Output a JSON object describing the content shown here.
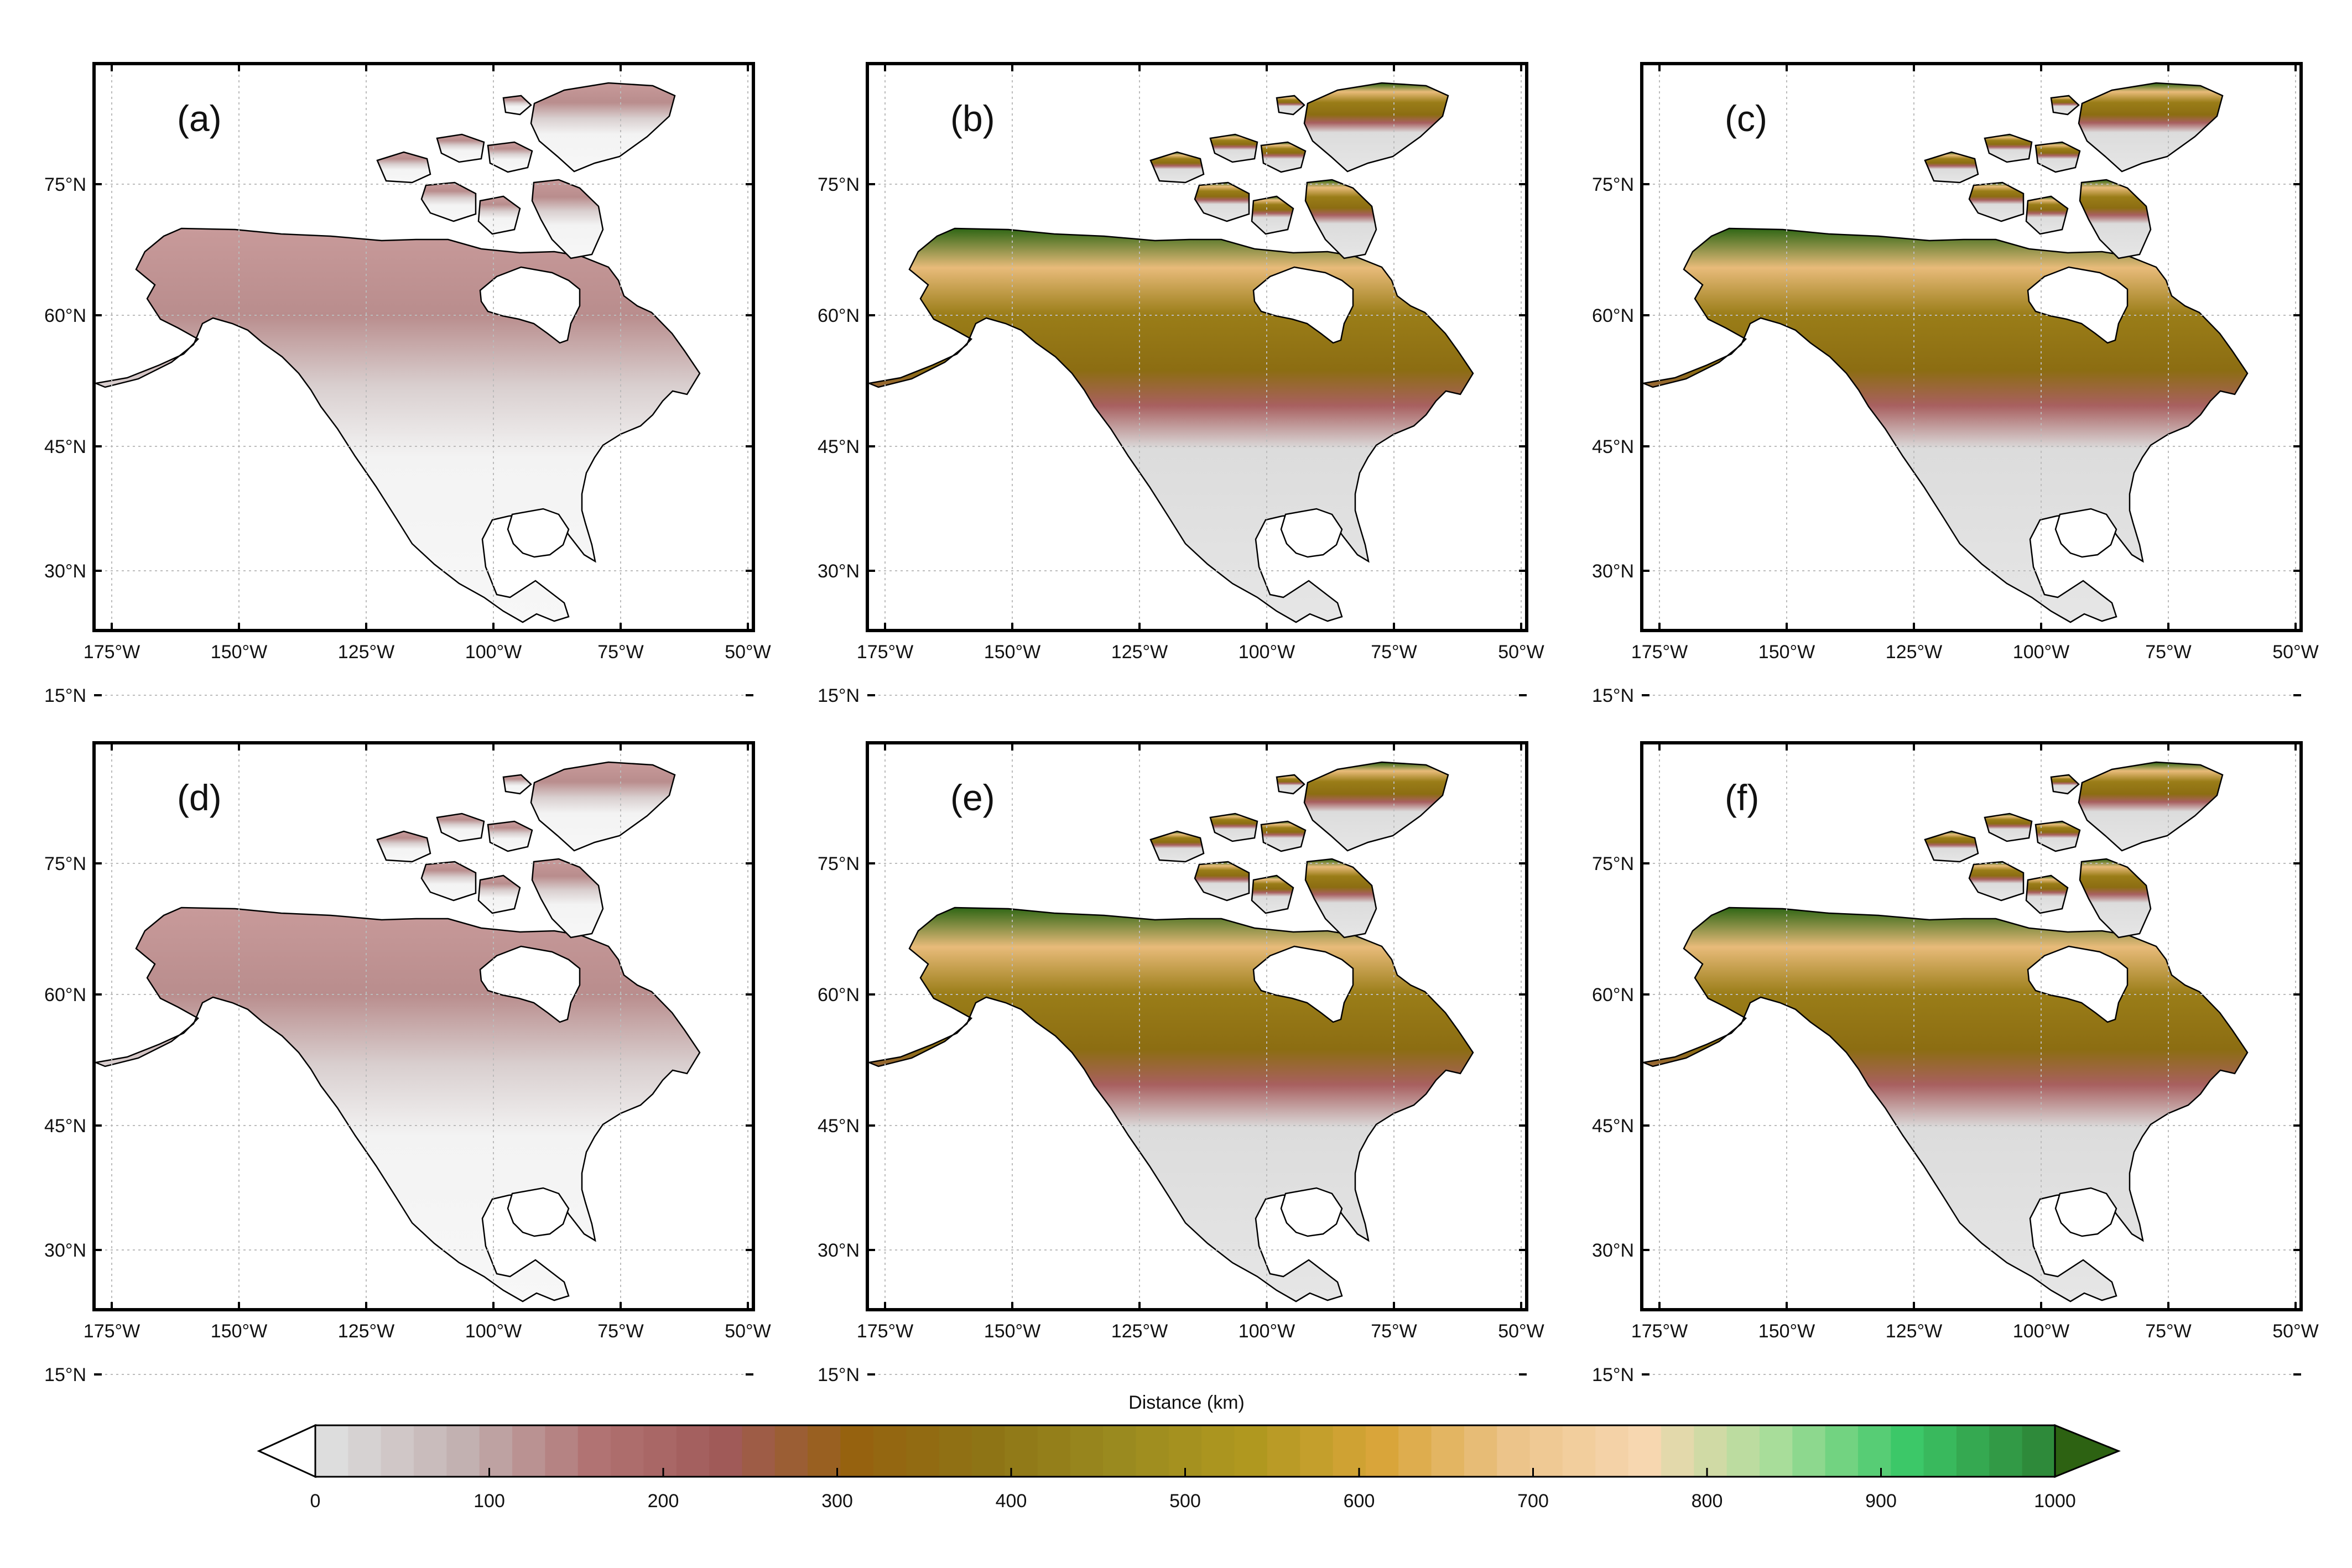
{
  "figure": {
    "lat_ticks": [
      "75°N",
      "60°N",
      "45°N",
      "30°N",
      "15°N"
    ],
    "lon_ticks": [
      "175°W",
      "150°W",
      "125°W",
      "100°W",
      "75°W",
      "50°W"
    ],
    "panels": [
      {
        "label": "(a)",
        "scheme": "low"
      },
      {
        "label": "(b)",
        "scheme": "high"
      },
      {
        "label": "(c)",
        "scheme": "high"
      },
      {
        "label": "(d)",
        "scheme": "low"
      },
      {
        "label": "(e)",
        "scheme": "high"
      },
      {
        "label": "(f)",
        "scheme": "high"
      }
    ]
  },
  "colorbar": {
    "title": "Distance (km)",
    "ticks": [
      "0",
      "100",
      "200",
      "300",
      "400",
      "500",
      "600",
      "700",
      "800",
      "900",
      "1000"
    ],
    "min": 0,
    "max": 1000,
    "extend": "both",
    "colors": [
      "#ffffff",
      "#dddddd",
      "#c2b1b1",
      "#b17373",
      "#a05a58",
      "#96620f",
      "#8e7415",
      "#9a8a1f",
      "#b0981f",
      "#d9a53a",
      "#ecc48a",
      "#f7d7b0",
      "#a8dd9a",
      "#3cc868",
      "#2e8a3a",
      "#2d6212"
    ]
  },
  "colors": {
    "coast": "#000000",
    "grid": "#bbbbbb",
    "frame": "#000000"
  }
}
